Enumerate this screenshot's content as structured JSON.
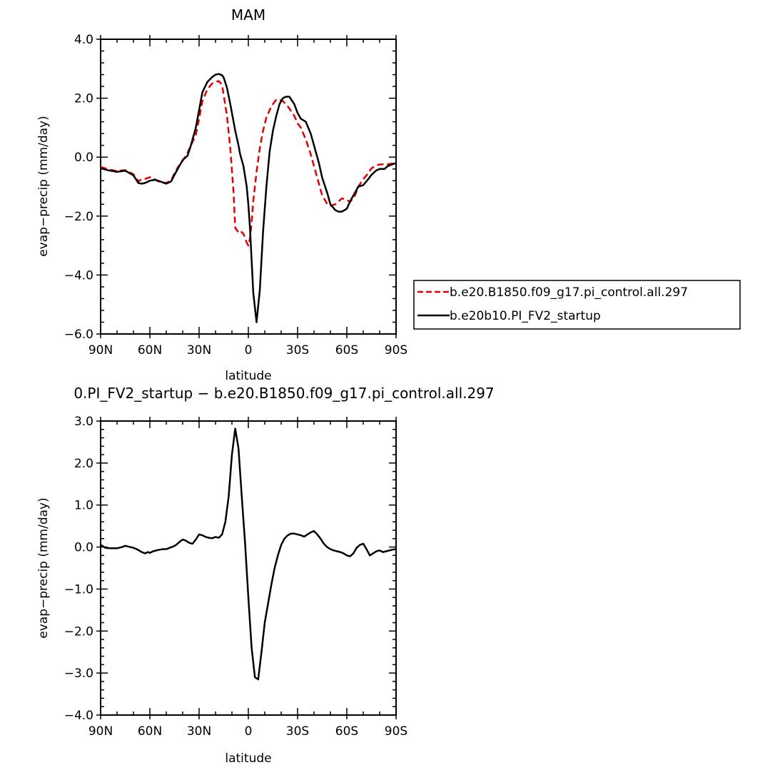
{
  "chart_data": [
    {
      "type": "line",
      "title": "MAM",
      "xlabel": "latitude",
      "ylabel": "evap−precip (mm/day)",
      "xlim": [
        90,
        -90
      ],
      "ylim": [
        -6.0,
        4.0
      ],
      "xticks": [
        90,
        60,
        30,
        0,
        -30,
        -60,
        -90
      ],
      "xticklabels": [
        "90N",
        "60N",
        "30N",
        "0",
        "30S",
        "60S",
        "90S"
      ],
      "yticks": [
        4.0,
        2.0,
        0.0,
        -2.0,
        -4.0,
        -6.0
      ],
      "yticklabels": [
        "4.0",
        "2.0",
        "0.0",
        "−2.0",
        "−4.0",
        "−6.0"
      ],
      "legend_placement": "right",
      "series": [
        {
          "name": "b.e20.B1850.f09_g17.pi_control.all.297",
          "color": "#e00000",
          "dash": "dashed",
          "x": [
            90,
            85,
            80,
            75,
            70,
            67,
            65,
            63,
            60,
            57,
            55,
            50,
            47,
            45,
            43,
            40,
            37,
            35,
            32,
            30,
            28,
            25,
            22,
            20,
            18,
            16,
            15,
            13,
            11,
            9,
            8,
            6,
            5,
            3,
            1,
            0,
            -1,
            -2,
            -3,
            -5,
            -7,
            -9,
            -11,
            -13,
            -15,
            -17,
            -19,
            -21,
            -23,
            -25,
            -28,
            -30,
            -32,
            -35,
            -38,
            -40,
            -43,
            -45,
            -48,
            -50,
            -53,
            -55,
            -57,
            -60,
            -62,
            -65,
            -67,
            -70,
            -73,
            -75,
            -78,
            -80,
            -83,
            -85,
            -90
          ],
          "y": [
            -0.33,
            -0.42,
            -0.47,
            -0.44,
            -0.58,
            -0.82,
            -0.75,
            -0.74,
            -0.68,
            -0.75,
            -0.82,
            -0.88,
            -0.78,
            -0.55,
            -0.35,
            -0.12,
            0.15,
            0.4,
            0.75,
            1.3,
            1.9,
            2.3,
            2.5,
            2.55,
            2.58,
            2.45,
            2.1,
            1.4,
            0.3,
            -1.2,
            -2.4,
            -2.55,
            -2.5,
            -2.6,
            -2.9,
            -3.0,
            -2.75,
            -2.2,
            -1.5,
            -0.5,
            0.3,
            0.9,
            1.35,
            1.6,
            1.8,
            1.95,
            1.95,
            1.9,
            1.8,
            1.65,
            1.4,
            1.15,
            1.0,
            0.6,
            0.1,
            -0.3,
            -0.9,
            -1.3,
            -1.58,
            -1.65,
            -1.6,
            -1.5,
            -1.4,
            -1.45,
            -1.52,
            -1.3,
            -1.0,
            -0.75,
            -0.55,
            -0.38,
            -0.28,
            -0.25,
            -0.24,
            -0.24,
            -0.2
          ]
        },
        {
          "name": "b.e20b10.PI_FV2_startup",
          "color": "#000000",
          "dash": "solid",
          "x": [
            90,
            85,
            80,
            75,
            70,
            67,
            65,
            63,
            60,
            57,
            55,
            50,
            47,
            45,
            43,
            40,
            37,
            35,
            32,
            30,
            28,
            25,
            22,
            20,
            18,
            16,
            15,
            13,
            11,
            9,
            8,
            6,
            5,
            3,
            1,
            0,
            -1,
            -2,
            -3,
            -5,
            -7,
            -9,
            -11,
            -13,
            -15,
            -17,
            -19,
            -21,
            -23,
            -25,
            -28,
            -30,
            -32,
            -35,
            -38,
            -40,
            -43,
            -45,
            -48,
            -50,
            -53,
            -55,
            -57,
            -60,
            -62,
            -65,
            -67,
            -70,
            -73,
            -75,
            -78,
            -80,
            -83,
            -85,
            -90
          ],
          "y": [
            -0.38,
            -0.45,
            -0.5,
            -0.46,
            -0.62,
            -0.88,
            -0.9,
            -0.88,
            -0.8,
            -0.77,
            -0.8,
            -0.9,
            -0.82,
            -0.6,
            -0.4,
            -0.1,
            0.05,
            0.4,
            1.0,
            1.6,
            2.2,
            2.55,
            2.72,
            2.8,
            2.82,
            2.78,
            2.7,
            2.35,
            1.8,
            1.2,
            0.9,
            0.4,
            0.1,
            -0.3,
            -1.0,
            -1.6,
            -2.4,
            -3.5,
            -4.6,
            -5.6,
            -4.5,
            -2.5,
            -1.0,
            0.2,
            0.9,
            1.4,
            1.8,
            2.0,
            2.05,
            2.05,
            1.8,
            1.5,
            1.3,
            1.2,
            0.8,
            0.4,
            -0.2,
            -0.7,
            -1.2,
            -1.6,
            -1.8,
            -1.85,
            -1.85,
            -1.75,
            -1.5,
            -1.2,
            -1.0,
            -0.95,
            -0.75,
            -0.6,
            -0.45,
            -0.4,
            -0.4,
            -0.3,
            -0.2
          ]
        }
      ]
    },
    {
      "type": "line",
      "title": "0.PI_FV2_startup − b.e20.B1850.f09_g17.pi_control.all.297",
      "xlabel": "latitude",
      "ylabel": "evap−precip (mm/day)",
      "xlim": [
        90,
        -90
      ],
      "ylim": [
        -4.0,
        3.0
      ],
      "xticks": [
        90,
        60,
        30,
        0,
        -30,
        -60,
        -90
      ],
      "xticklabels": [
        "90N",
        "60N",
        "30N",
        "0",
        "30S",
        "60S",
        "90S"
      ],
      "yticks": [
        3.0,
        2.0,
        1.0,
        0.0,
        -1.0,
        -2.0,
        -3.0,
        -4.0
      ],
      "yticklabels": [
        "3.0",
        "2.0",
        "1.0",
        "0.0",
        "−1.0",
        "−2.0",
        "−3.0",
        "−4.0"
      ],
      "series": [
        {
          "color": "#000000",
          "dash": "solid",
          "x": [
            90,
            87,
            84,
            80,
            77,
            75,
            72,
            70,
            68,
            65,
            63,
            61,
            60,
            58,
            55,
            52,
            50,
            48,
            46,
            44,
            42,
            40,
            38,
            36,
            34,
            32,
            30,
            28,
            26,
            24,
            22,
            20,
            18,
            16,
            14,
            12,
            10,
            8,
            6,
            4,
            2,
            0,
            -2,
            -4,
            -6,
            -8,
            -10,
            -12,
            -14,
            -16,
            -18,
            -20,
            -22,
            -24,
            -26,
            -28,
            -30,
            -32,
            -34,
            -36,
            -38,
            -40,
            -42,
            -44,
            -46,
            -48,
            -50,
            -52,
            -54,
            -56,
            -58,
            -60,
            -62,
            -64,
            -66,
            -68,
            -70,
            -72,
            -74,
            -76,
            -78,
            -80,
            -82,
            -84,
            -86,
            -88,
            -90
          ],
          "y": [
            0.05,
            -0.02,
            -0.03,
            -0.03,
            0.0,
            0.03,
            0.0,
            -0.02,
            -0.05,
            -0.12,
            -0.15,
            -0.12,
            -0.14,
            -0.1,
            -0.07,
            -0.05,
            -0.05,
            -0.02,
            0.01,
            0.05,
            0.12,
            0.18,
            0.15,
            0.1,
            0.08,
            0.18,
            0.3,
            0.28,
            0.24,
            0.22,
            0.21,
            0.24,
            0.22,
            0.3,
            0.6,
            1.2,
            2.2,
            2.82,
            2.35,
            1.2,
            0.1,
            -1.2,
            -2.4,
            -3.1,
            -3.15,
            -2.5,
            -1.8,
            -1.35,
            -0.9,
            -0.5,
            -0.2,
            0.05,
            0.2,
            0.28,
            0.32,
            0.32,
            0.3,
            0.28,
            0.25,
            0.3,
            0.35,
            0.38,
            0.3,
            0.2,
            0.08,
            0.0,
            -0.05,
            -0.08,
            -0.1,
            -0.12,
            -0.15,
            -0.2,
            -0.22,
            -0.15,
            -0.02,
            0.05,
            0.08,
            -0.05,
            -0.2,
            -0.15,
            -0.1,
            -0.08,
            -0.12,
            -0.1,
            -0.08,
            -0.06,
            -0.05
          ]
        }
      ]
    }
  ]
}
